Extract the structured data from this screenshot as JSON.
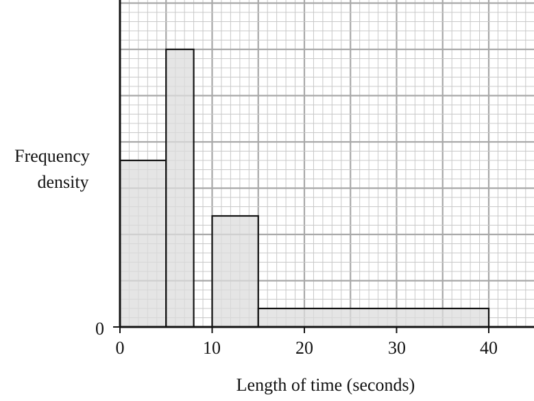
{
  "chart_data": {
    "type": "histogram",
    "xlabel": "Length of time (seconds)",
    "ylabel": [
      "Frequency",
      "density"
    ],
    "x_range": [
      0,
      44
    ],
    "x_ticks": [
      0,
      10,
      20,
      30,
      40
    ],
    "y_ticks": [
      0
    ],
    "grid": "on",
    "bars": [
      {
        "x0": 0,
        "x1": 5,
        "density": 3.6
      },
      {
        "x0": 5,
        "x1": 8,
        "density": 6.0
      },
      {
        "x0": 10,
        "x1": 15,
        "density": 2.4
      },
      {
        "x0": 15,
        "x1": 40,
        "density": 0.4
      }
    ],
    "colors": {
      "bar_fill": "#dcdcdc",
      "bar_stroke": "#111111",
      "grid_minor": "#c8c8c8",
      "grid_major": "#a8a8a8"
    }
  }
}
